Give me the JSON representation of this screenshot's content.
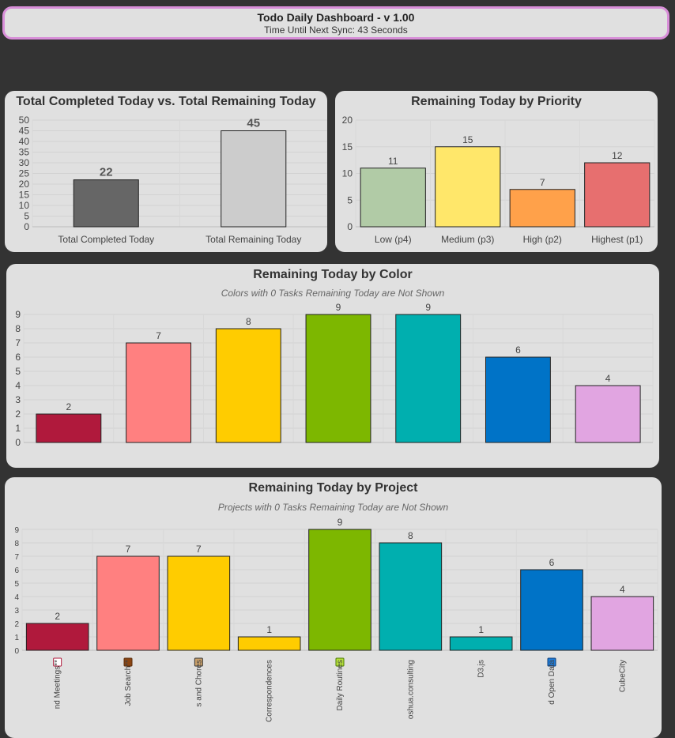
{
  "header": {
    "title": "Todo Daily Dashboard - v 1.00",
    "sync_label": "Time Until Next Sync: 43 Seconds"
  },
  "colors": {
    "background": "#333333",
    "card": "#e0e0e0",
    "header_border": "#d88ed8"
  },
  "chart_data": [
    {
      "id": "completed",
      "type": "bar",
      "title": "Total Completed Today vs. Total Remaining Today",
      "categories": [
        "Total Completed Today",
        "Total Remaining Today"
      ],
      "values": [
        22,
        45
      ],
      "colors": [
        "#666666",
        "#cccccc"
      ],
      "yticks": [
        0,
        5,
        10,
        15,
        20,
        25,
        30,
        35,
        40,
        45,
        50
      ],
      "ylim": [
        0,
        50
      ],
      "grid": true
    },
    {
      "id": "priority",
      "type": "bar",
      "title": "Remaining Today by Priority",
      "categories": [
        "Low (p4)",
        "Medium (p3)",
        "High (p2)",
        "Highest (p1)"
      ],
      "values": [
        11,
        15,
        7,
        12
      ],
      "colors": [
        "#b1cba6",
        "#ffe76a",
        "#ffa14a",
        "#e76f6f"
      ],
      "yticks": [
        0,
        5,
        10,
        15,
        20
      ],
      "ylim": [
        0,
        20
      ],
      "grid": true
    },
    {
      "id": "color",
      "type": "bar",
      "title": "Remaining Today by Color",
      "subtitle": "Colors with 0 Tasks Remaining Today are Not Shown",
      "categories": [
        "",
        "",
        "",
        "",
        "",
        "",
        ""
      ],
      "values": [
        2,
        7,
        8,
        9,
        9,
        6,
        4
      ],
      "colors": [
        "#b0193c",
        "#ff8080",
        "#ffcc00",
        "#7db700",
        "#00afaf",
        "#0073c7",
        "#e1a5e1"
      ],
      "yticks": [
        0,
        1,
        2,
        3,
        4,
        5,
        6,
        7,
        8,
        9
      ],
      "ylim": [
        0,
        9
      ],
      "grid": true
    },
    {
      "id": "project",
      "type": "bar",
      "title": "Remaining Today by Project",
      "subtitle": "Projects with 0 Tasks Remaining Today are Not Shown",
      "categories": [
        "nd Meetings**",
        "Job Search**",
        "s and Chores",
        "Correspondences",
        "Daily Routines",
        "oshua.consulting",
        "D3.js",
        "d Open Data",
        "CubeCity"
      ],
      "category_icons": [
        "calendar-icon",
        "briefcase-icon",
        "chores-icon",
        "",
        "leaf-icon",
        "",
        "",
        "data-icon",
        ""
      ],
      "values": [
        2,
        7,
        7,
        1,
        9,
        8,
        1,
        6,
        4
      ],
      "colors": [
        "#b0193c",
        "#ff8080",
        "#ffcc00",
        "#ffcc00",
        "#7db700",
        "#00afaf",
        "#00afaf",
        "#0073c7",
        "#e1a5e1"
      ],
      "yticks": [
        0,
        1,
        2,
        3,
        4,
        5,
        6,
        7,
        8,
        9
      ],
      "ylim": [
        0,
        9
      ],
      "grid": true
    }
  ]
}
